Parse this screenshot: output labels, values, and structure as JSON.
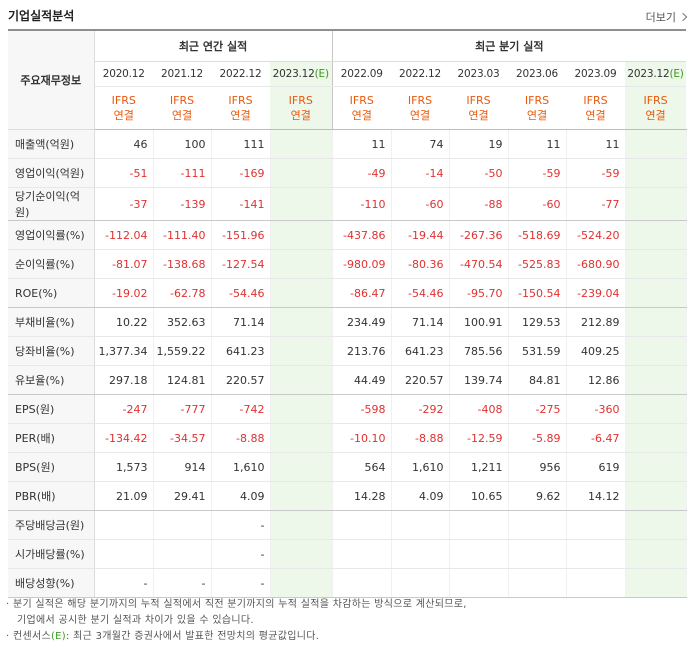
{
  "header": {
    "title": "기업실적분석",
    "more_label": "더보기"
  },
  "table": {
    "corner_label": "주요재무정보",
    "group_annual": "최근 연간 실적",
    "group_quarter": "최근 분기 실적",
    "periods": [
      {
        "label": "2020.12",
        "est": ""
      },
      {
        "label": "2021.12",
        "est": ""
      },
      {
        "label": "2022.12",
        "est": ""
      },
      {
        "label": "2023.12",
        "est": "(E)"
      },
      {
        "label": "2022.09",
        "est": ""
      },
      {
        "label": "2022.12",
        "est": ""
      },
      {
        "label": "2023.03",
        "est": ""
      },
      {
        "label": "2023.06",
        "est": ""
      },
      {
        "label": "2023.09",
        "est": ""
      },
      {
        "label": "2023.12",
        "est": "(E)"
      }
    ],
    "basis_top": "IFRS",
    "basis_bottom": "연결",
    "rows": [
      {
        "label": "매출액(억원)",
        "values": [
          "46",
          "100",
          "111",
          "",
          "11",
          "74",
          "19",
          "11",
          "11",
          ""
        ]
      },
      {
        "label": "영업이익(억원)",
        "values": [
          "-51",
          "-111",
          "-169",
          "",
          "-49",
          "-14",
          "-50",
          "-59",
          "-59",
          ""
        ]
      },
      {
        "label": "당기순이익(억원)",
        "values": [
          "-37",
          "-139",
          "-141",
          "",
          "-110",
          "-60",
          "-88",
          "-60",
          "-77",
          ""
        ]
      },
      {
        "label": "영업이익률(%)",
        "values": [
          "-112.04",
          "-111.40",
          "-151.96",
          "",
          "-437.86",
          "-19.44",
          "-267.36",
          "-518.69",
          "-524.20",
          ""
        ]
      },
      {
        "label": "순이익률(%)",
        "values": [
          "-81.07",
          "-138.68",
          "-127.54",
          "",
          "-980.09",
          "-80.36",
          "-470.54",
          "-525.83",
          "-680.90",
          ""
        ]
      },
      {
        "label": "ROE(%)",
        "values": [
          "-19.02",
          "-62.78",
          "-54.46",
          "",
          "-86.47",
          "-54.46",
          "-95.70",
          "-150.54",
          "-239.04",
          ""
        ]
      },
      {
        "label": "부채비율(%)",
        "values": [
          "10.22",
          "352.63",
          "71.14",
          "",
          "234.49",
          "71.14",
          "100.91",
          "129.53",
          "212.89",
          ""
        ]
      },
      {
        "label": "당좌비율(%)",
        "values": [
          "1,377.34",
          "1,559.22",
          "641.23",
          "",
          "213.76",
          "641.23",
          "785.56",
          "531.59",
          "409.25",
          ""
        ]
      },
      {
        "label": "유보율(%)",
        "values": [
          "297.18",
          "124.81",
          "220.57",
          "",
          "44.49",
          "220.57",
          "139.74",
          "84.81",
          "12.86",
          ""
        ]
      },
      {
        "label": "EPS(원)",
        "values": [
          "-247",
          "-777",
          "-742",
          "",
          "-598",
          "-292",
          "-408",
          "-275",
          "-360",
          ""
        ]
      },
      {
        "label": "PER(배)",
        "values": [
          "-134.42",
          "-34.57",
          "-8.88",
          "",
          "-10.10",
          "-8.88",
          "-12.59",
          "-5.89",
          "-6.47",
          ""
        ]
      },
      {
        "label": "BPS(원)",
        "values": [
          "1,573",
          "914",
          "1,610",
          "",
          "564",
          "1,610",
          "1,211",
          "956",
          "619",
          ""
        ]
      },
      {
        "label": "PBR(배)",
        "values": [
          "21.09",
          "29.41",
          "4.09",
          "",
          "14.28",
          "4.09",
          "10.65",
          "9.62",
          "14.12",
          ""
        ]
      },
      {
        "label": "주당배당금(원)",
        "values": [
          "",
          "",
          "-",
          "",
          "",
          "",
          "",
          "",
          "",
          ""
        ]
      },
      {
        "label": "시가배당률(%)",
        "values": [
          "",
          "",
          "-",
          "",
          "",
          "",
          "",
          "",
          "",
          ""
        ]
      },
      {
        "label": "배당성향(%)",
        "values": [
          "-",
          "-",
          "-",
          "",
          "",
          "",
          "",
          "",
          "",
          ""
        ]
      }
    ]
  },
  "notes": {
    "line1": "· 분기 실적은 해당 분기까지의 누적 실적에서 직전 분기까지의 누적 실적을 차감하는 방식으로 계산되므로,",
    "line2": "기업에서 공시한 분기 실적과 차이가 있을 수 있습니다.",
    "line3_prefix": "· 컨센서스",
    "line3_mark": "(E)",
    "line3_suffix": ": 최근 3개월간 증권사에서 발표한 전망치의 평균값입니다."
  },
  "colors": {
    "negative": "#e03131",
    "ifrs": "#e8590c",
    "estimate_bg": "#edf7ea",
    "estimate_mark": "#3a9a1d"
  }
}
